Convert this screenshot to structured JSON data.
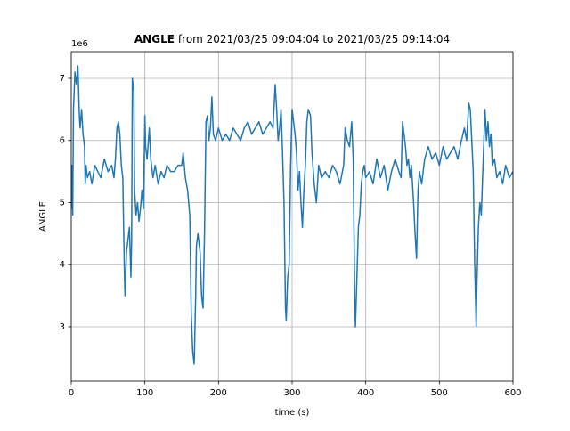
{
  "chart_data": {
    "type": "line",
    "title_bold": "ANGLE",
    "title": "from 2021/03/25 09:04:04 to 2021/03/25 09:14:04",
    "x_label": "time (s)",
    "y_label": "ANGLE",
    "y_offset": "1e6",
    "xlim": [
      0,
      600
    ],
    "ylim": [
      2.125,
      7.43
    ],
    "xticks": [
      0,
      100,
      200,
      300,
      400,
      500,
      600
    ],
    "yticks": [
      3,
      4,
      5,
      6,
      7
    ],
    "grid": true,
    "series": [
      {
        "name": "ANGLE",
        "color": "#1f77b4",
        "x": [
          0,
          1,
          2,
          3,
          5,
          7,
          9,
          10,
          11,
          12,
          14,
          16,
          18,
          19,
          20,
          22,
          25,
          28,
          32,
          36,
          40,
          45,
          50,
          55,
          58,
          60,
          62,
          64,
          66,
          68,
          70,
          72,
          73,
          75,
          77,
          79,
          81,
          82,
          83,
          85,
          86,
          88,
          90,
          92,
          94,
          96,
          98,
          100,
          101,
          103,
          106,
          108,
          111,
          114,
          118,
          122,
          126,
          130,
          135,
          140,
          145,
          150,
          152,
          155,
          158,
          161,
          163,
          165,
          167,
          169,
          170,
          172,
          175,
          177,
          179,
          181,
          183,
          185,
          187,
          189,
          191,
          193,
          196,
          200,
          205,
          210,
          215,
          220,
          225,
          230,
          235,
          240,
          245,
          250,
          255,
          260,
          265,
          270,
          274,
          277,
          279,
          281,
          283,
          285,
          287,
          289,
          291,
          292,
          294,
          296,
          298,
          300,
          302,
          304,
          306,
          308,
          310,
          312,
          314,
          316,
          318,
          320,
          322,
          325,
          327,
          330,
          333,
          336,
          340,
          345,
          350,
          355,
          360,
          365,
          370,
          372,
          375,
          378,
          381,
          383,
          385,
          386,
          388,
          390,
          392,
          394,
          396,
          398,
          400,
          405,
          410,
          415,
          420,
          425,
          430,
          435,
          440,
          445,
          448,
          450,
          452,
          454,
          456,
          458,
          460,
          462,
          465,
          467,
          469,
          471,
          473,
          476,
          480,
          485,
          490,
          495,
          500,
          505,
          510,
          515,
          520,
          525,
          530,
          534,
          537,
          540,
          542,
          544,
          546,
          548,
          550,
          551,
          553,
          555,
          557,
          559,
          562,
          564,
          566,
          568,
          570,
          572,
          575,
          578,
          582,
          586,
          590,
          595,
          600
        ],
        "values": [
          4.9,
          5.6,
          4.8,
          6.5,
          7.1,
          6.9,
          7.2,
          6.8,
          6.4,
          6.2,
          6.5,
          6.1,
          5.9,
          5.3,
          5.6,
          5.4,
          5.5,
          5.3,
          5.6,
          5.5,
          5.4,
          5.7,
          5.5,
          5.6,
          5.4,
          5.7,
          6.2,
          6.3,
          6.1,
          5.6,
          5.4,
          4.0,
          3.5,
          4.2,
          4.4,
          4.6,
          3.8,
          4.4,
          7.0,
          6.8,
          5.2,
          4.8,
          5.0,
          4.7,
          4.9,
          5.2,
          4.9,
          6.4,
          5.9,
          5.7,
          6.2,
          5.7,
          5.4,
          5.6,
          5.3,
          5.5,
          5.4,
          5.6,
          5.5,
          5.5,
          5.6,
          5.6,
          5.8,
          5.4,
          5.2,
          4.8,
          3.2,
          2.6,
          2.4,
          3.5,
          4.3,
          4.5,
          4.2,
          3.5,
          3.3,
          4.5,
          6.3,
          6.4,
          6.0,
          6.2,
          6.7,
          6.1,
          6.0,
          6.2,
          6.0,
          6.1,
          6.0,
          6.2,
          6.1,
          6.0,
          6.2,
          6.3,
          6.1,
          6.2,
          6.3,
          6.1,
          6.2,
          6.3,
          6.2,
          6.9,
          6.5,
          6.0,
          6.2,
          6.5,
          5.8,
          5.0,
          3.3,
          3.1,
          3.8,
          4.0,
          5.6,
          6.5,
          6.3,
          6.1,
          5.8,
          5.2,
          5.5,
          5.0,
          4.6,
          5.2,
          5.6,
          6.3,
          6.5,
          6.4,
          5.8,
          5.3,
          5.0,
          5.6,
          5.4,
          5.5,
          5.4,
          5.6,
          5.5,
          5.3,
          5.6,
          6.2,
          6.0,
          5.9,
          6.3,
          5.7,
          3.5,
          3.0,
          3.8,
          4.6,
          4.8,
          5.3,
          5.5,
          5.6,
          5.4,
          5.5,
          5.3,
          5.7,
          5.4,
          5.6,
          5.2,
          5.5,
          5.7,
          5.5,
          5.4,
          6.3,
          6.1,
          5.9,
          5.6,
          5.7,
          5.4,
          5.6,
          5.0,
          4.5,
          4.1,
          5.2,
          5.5,
          5.3,
          5.7,
          5.9,
          5.7,
          5.8,
          5.6,
          5.9,
          5.7,
          5.8,
          5.9,
          5.7,
          6.0,
          6.2,
          6.0,
          6.6,
          6.5,
          6.0,
          5.5,
          4.0,
          3.0,
          3.7,
          4.6,
          5.0,
          4.8,
          5.5,
          6.5,
          6.0,
          6.3,
          5.9,
          6.1,
          5.6,
          5.7,
          5.4,
          5.5,
          5.3,
          5.6,
          5.4,
          5.5
        ]
      }
    ]
  }
}
